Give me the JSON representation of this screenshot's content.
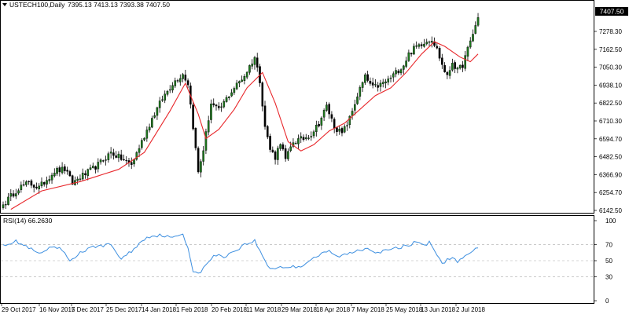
{
  "header": {
    "symbol": "USTECH100,Daily",
    "ohlc": "7395.13 7413.13 7393.38 7407.50",
    "dropdown_icon": "triangle-down-icon"
  },
  "rsi_header": {
    "label": "RSI(14) 66.2630"
  },
  "colors": {
    "bull_body": "#1e7a1e",
    "bear_body": "#000000",
    "wick": "#000000",
    "ma_line": "#e8282c",
    "rsi_line": "#3d8fe0",
    "grid": "#aaaaaa",
    "last_price_bg": "#000000",
    "last_price_fg": "#ffffff"
  },
  "chart_data": [
    {
      "type": "candlestick",
      "title": "USTECH100,Daily",
      "ylim": [
        6142.5,
        7450
      ],
      "y_ticks": [
        "7278.30",
        "7162.50",
        "7050.30",
        "6938.10",
        "6822.50",
        "6710.30",
        "6594.70",
        "6482.50",
        "6366.90",
        "6254.70",
        "6142.50"
      ],
      "last_price": "7407.50",
      "x_labels": [
        "29 Oct 2017",
        "16 Nov 2017",
        "5 Dec 2017",
        "25 Dec 2017",
        "14 Jan 2018",
        "1 Feb 2018",
        "20 Feb 2018",
        "11 Mar 2018",
        "29 Mar 2018",
        "18 Apr 2018",
        "7 May 2018",
        "25 May 2018",
        "13 Jun 2018",
        "2 Jul 2018"
      ],
      "close_anchors": [
        [
          0,
          6190
        ],
        [
          6,
          6300
        ],
        [
          10,
          6330
        ],
        [
          14,
          6300
        ],
        [
          20,
          6410
        ],
        [
          24,
          6420
        ],
        [
          27,
          6330
        ],
        [
          30,
          6370
        ],
        [
          33,
          6400
        ],
        [
          37,
          6450
        ],
        [
          42,
          6530
        ],
        [
          46,
          6490
        ],
        [
          50,
          6450
        ],
        [
          54,
          6600
        ],
        [
          58,
          6750
        ],
        [
          62,
          6880
        ],
        [
          66,
          6980
        ],
        [
          70,
          7040
        ],
        [
          72,
          6980
        ],
        [
          74,
          6700
        ],
        [
          76,
          6400
        ],
        [
          78,
          6550
        ],
        [
          81,
          6850
        ],
        [
          84,
          6800
        ],
        [
          87,
          6880
        ],
        [
          90,
          6950
        ],
        [
          94,
          7030
        ],
        [
          98,
          7150
        ],
        [
          100,
          7000
        ],
        [
          102,
          6700
        ],
        [
          104,
          6550
        ],
        [
          106,
          6500
        ],
        [
          108,
          6600
        ],
        [
          110,
          6480
        ],
        [
          113,
          6600
        ],
        [
          117,
          6620
        ],
        [
          120,
          6650
        ],
        [
          123,
          6720
        ],
        [
          126,
          6830
        ],
        [
          129,
          6700
        ],
        [
          132,
          6650
        ],
        [
          135,
          6750
        ],
        [
          138,
          6900
        ],
        [
          141,
          7020
        ],
        [
          144,
          6950
        ],
        [
          147,
          6970
        ],
        [
          150,
          7000
        ],
        [
          153,
          7050
        ],
        [
          156,
          7100
        ],
        [
          158,
          7170
        ],
        [
          161,
          7220
        ],
        [
          164,
          7250
        ],
        [
          167,
          7270
        ],
        [
          169,
          7200
        ],
        [
          171,
          7100
        ],
        [
          173,
          7020
        ],
        [
          175,
          7120
        ],
        [
          177,
          7060
        ],
        [
          179,
          7100
        ],
        [
          182,
          7250
        ],
        [
          185,
          7407.5
        ]
      ],
      "moving_average": {
        "period": 20,
        "points": [
          [
            3,
            6160
          ],
          [
            15,
            6280
          ],
          [
            30,
            6340
          ],
          [
            45,
            6420
          ],
          [
            55,
            6530
          ],
          [
            65,
            6800
          ],
          [
            71,
            6980
          ],
          [
            76,
            6780
          ],
          [
            79,
            6620
          ],
          [
            84,
            6680
          ],
          [
            90,
            6810
          ],
          [
            95,
            6950
          ],
          [
            101,
            7050
          ],
          [
            106,
            6850
          ],
          [
            111,
            6600
          ],
          [
            116,
            6540
          ],
          [
            121,
            6580
          ],
          [
            127,
            6670
          ],
          [
            133,
            6720
          ],
          [
            139,
            6810
          ],
          [
            145,
            6900
          ],
          [
            151,
            6950
          ],
          [
            157,
            7050
          ],
          [
            163,
            7170
          ],
          [
            168,
            7250
          ],
          [
            172,
            7220
          ],
          [
            178,
            7150
          ],
          [
            182,
            7120
          ],
          [
            185,
            7170
          ]
        ]
      }
    },
    {
      "type": "line",
      "title": "RSI(14) 66.2630",
      "ylim": [
        0,
        100
      ],
      "y_ticks": [
        "100",
        "70",
        "50",
        "30",
        "0"
      ],
      "levels": [
        70,
        50,
        30
      ],
      "anchors": [
        [
          0,
          70
        ],
        [
          5,
          74
        ],
        [
          10,
          66
        ],
        [
          14,
          58
        ],
        [
          18,
          65
        ],
        [
          22,
          66
        ],
        [
          26,
          50
        ],
        [
          30,
          60
        ],
        [
          36,
          68
        ],
        [
          42,
          70
        ],
        [
          46,
          52
        ],
        [
          50,
          62
        ],
        [
          56,
          80
        ],
        [
          62,
          82
        ],
        [
          66,
          78
        ],
        [
          70,
          84
        ],
        [
          72,
          66
        ],
        [
          74,
          38
        ],
        [
          76,
          33
        ],
        [
          78,
          40
        ],
        [
          82,
          57
        ],
        [
          86,
          55
        ],
        [
          90,
          62
        ],
        [
          94,
          70
        ],
        [
          98,
          75
        ],
        [
          100,
          62
        ],
        [
          102,
          50
        ],
        [
          104,
          40
        ],
        [
          108,
          42
        ],
        [
          112,
          42
        ],
        [
          116,
          43
        ],
        [
          120,
          52
        ],
        [
          124,
          58
        ],
        [
          127,
          62
        ],
        [
          130,
          55
        ],
        [
          134,
          58
        ],
        [
          138,
          63
        ],
        [
          142,
          66
        ],
        [
          146,
          60
        ],
        [
          150,
          63
        ],
        [
          154,
          66
        ],
        [
          158,
          70
        ],
        [
          162,
          74
        ],
        [
          164,
          68
        ],
        [
          166,
          74
        ],
        [
          169,
          58
        ],
        [
          171,
          45
        ],
        [
          173,
          52
        ],
        [
          175,
          55
        ],
        [
          177,
          47
        ],
        [
          179,
          53
        ],
        [
          182,
          60
        ],
        [
          185,
          66
        ]
      ]
    }
  ]
}
